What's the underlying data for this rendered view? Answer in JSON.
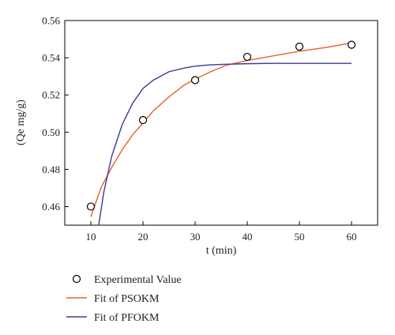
{
  "chart_data": {
    "type": "scatter",
    "xlabel": "t (min)",
    "ylabel": "(Qe mg/g)",
    "xlim": [
      5,
      65
    ],
    "ylim": [
      0.45,
      0.56
    ],
    "xticks": [
      "10",
      "20",
      "30",
      "40",
      "50",
      "60"
    ],
    "yticks": [
      "0.46",
      "0.48",
      "0.50",
      "0.52",
      "0.54",
      "0.56"
    ],
    "grid": false,
    "legend_position": "bottom",
    "series": [
      {
        "name": "Experimental Value",
        "kind": "points",
        "marker": "open-circle",
        "color": "#000000",
        "x": [
          10,
          20,
          30,
          40,
          50,
          60
        ],
        "y": [
          0.46,
          0.5065,
          0.528,
          0.5405,
          0.546,
          0.547
        ]
      },
      {
        "name": "Fit of PSOKM",
        "kind": "line",
        "color": "#e8602c",
        "x": [
          10,
          12,
          14,
          16,
          18,
          20,
          22,
          25,
          28,
          30,
          33,
          36,
          40,
          45,
          50,
          55,
          60
        ],
        "y": [
          0.4545,
          0.4705,
          0.481,
          0.4905,
          0.4985,
          0.505,
          0.5115,
          0.519,
          0.5255,
          0.5285,
          0.5325,
          0.536,
          0.5385,
          0.541,
          0.5435,
          0.5455,
          0.548
        ]
      },
      {
        "name": "Fit of PFOKM",
        "kind": "line",
        "color": "#3b3b96",
        "x": [
          11.5,
          12.5,
          14,
          16,
          18,
          20,
          22,
          25,
          28,
          30,
          33,
          36,
          40,
          45,
          50,
          55,
          60
        ],
        "y": [
          0.45,
          0.468,
          0.487,
          0.504,
          0.5155,
          0.5235,
          0.528,
          0.5325,
          0.5345,
          0.5355,
          0.5362,
          0.5365,
          0.5368,
          0.537,
          0.537,
          0.537,
          0.537
        ]
      }
    ]
  }
}
